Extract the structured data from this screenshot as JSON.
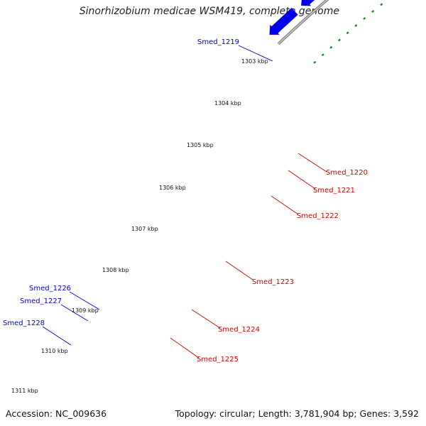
{
  "genome_title": "Sinorhizobium medicae WSM419, complete genome",
  "accession": "Accession: NC_009636",
  "summary": "Topology: circular; Length: 3,781,904 bp; Genes: 3,592",
  "colors": {
    "backbone": "#888888",
    "forward_gene": "#0000ee",
    "reverse_gene": "#ee0000",
    "highlight_gene": "#ee1199",
    "dots_inner": "#1a8a1a",
    "dots_outer": "#1a8a1a",
    "forward_label": "#0000cc",
    "reverse_label": "#cc0000"
  },
  "ticks": [
    "1303 kbp",
    "1304 kbp",
    "1305 kbp",
    "1306 kbp",
    "1307 kbp",
    "1308 kbp",
    "1309 kbp",
    "1310 kbp",
    "1311 kbp"
  ],
  "genes": [
    {
      "name": "Smed_1219",
      "strand": "forward"
    },
    {
      "name": "Smed_1220",
      "strand": "reverse"
    },
    {
      "name": "Smed_1221",
      "strand": "reverse"
    },
    {
      "name": "Smed_1222",
      "strand": "reverse"
    },
    {
      "name": "Smed_1223",
      "strand": "reverse",
      "highlight": true
    },
    {
      "name": "Smed_1224",
      "strand": "reverse"
    },
    {
      "name": "Smed_1225",
      "strand": "reverse"
    },
    {
      "name": "Smed_1226",
      "strand": "forward"
    },
    {
      "name": "Smed_1227",
      "strand": "forward"
    },
    {
      "name": "Smed_1228",
      "strand": "forward"
    }
  ]
}
